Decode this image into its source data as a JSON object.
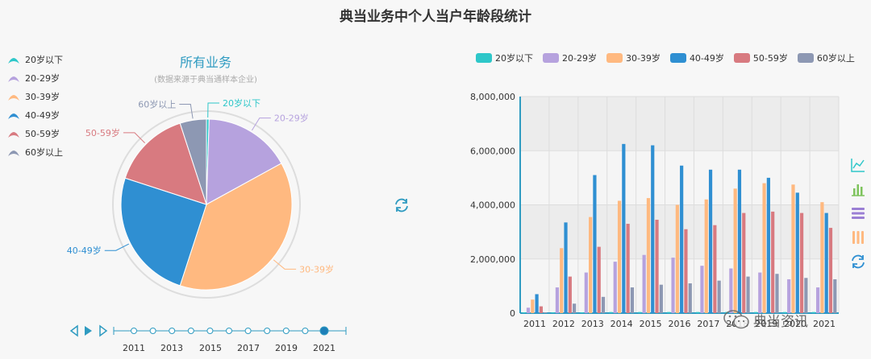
{
  "title": "典当业务中个人当户年龄段统计",
  "pie": {
    "title": "所有业务",
    "subtitle": "(数据来源于典当通样本企业)"
  },
  "legend": [
    {
      "label": "20岁以下",
      "color": "#2ec7c9"
    },
    {
      "label": "20-29岁",
      "color": "#b6a2de"
    },
    {
      "label": "30-39岁",
      "color": "#ffb980"
    },
    {
      "label": "40-49岁",
      "color": "#2f8fd2"
    },
    {
      "label": "50-59岁",
      "color": "#d87a80"
    },
    {
      "label": "60岁以上",
      "color": "#8d98b3"
    }
  ],
  "timeline": {
    "labels": [
      "2011",
      "2013",
      "2015",
      "2017",
      "2019",
      "2021"
    ],
    "selected": "2021"
  },
  "watermark": "典当资讯",
  "chart_data": [
    {
      "type": "pie",
      "title": "所有业务",
      "subtitle": "(数据来源于典当通样本企业)",
      "year": "2021",
      "slices": [
        {
          "label": "20岁以下",
          "value": 0.5
        },
        {
          "label": "20-29岁",
          "value": 16.5
        },
        {
          "label": "30-39岁",
          "value": 38
        },
        {
          "label": "40-49岁",
          "value": 25
        },
        {
          "label": "50-59岁",
          "value": 15
        },
        {
          "label": "60岁以上",
          "value": 5
        }
      ]
    },
    {
      "type": "bar",
      "categories": [
        "2011",
        "2012",
        "2013",
        "2014",
        "2015",
        "2016",
        "2017",
        "2018",
        "2019",
        "2020",
        "2021"
      ],
      "ylim": [
        0,
        8000000
      ],
      "yticks": [
        "0",
        "2,000,000",
        "4,000,000",
        "6,000,000",
        "8,000,000"
      ],
      "legend_position": "top",
      "series": [
        {
          "name": "20岁以下",
          "values": [
            30000,
            30000,
            30000,
            40000,
            40000,
            40000,
            40000,
            40000,
            40000,
            40000,
            40000
          ]
        },
        {
          "name": "20-29岁",
          "values": [
            200000,
            950000,
            1500000,
            1900000,
            2150000,
            2050000,
            1750000,
            1650000,
            1500000,
            1250000,
            950000
          ]
        },
        {
          "name": "30-39岁",
          "values": [
            500000,
            2400000,
            3550000,
            4150000,
            4250000,
            4000000,
            4200000,
            4600000,
            4800000,
            4750000,
            4100000
          ]
        },
        {
          "name": "40-49岁",
          "values": [
            700000,
            3350000,
            5100000,
            6250000,
            6200000,
            5450000,
            5300000,
            5300000,
            5000000,
            4450000,
            3700000
          ]
        },
        {
          "name": "50-59岁",
          "values": [
            250000,
            1350000,
            2450000,
            3300000,
            3450000,
            3100000,
            3250000,
            3700000,
            3750000,
            3700000,
            3150000
          ]
        },
        {
          "name": "60岁以上",
          "values": [
            30000,
            350000,
            600000,
            950000,
            1050000,
            1100000,
            1200000,
            1350000,
            1450000,
            1300000,
            1250000
          ]
        }
      ]
    }
  ]
}
